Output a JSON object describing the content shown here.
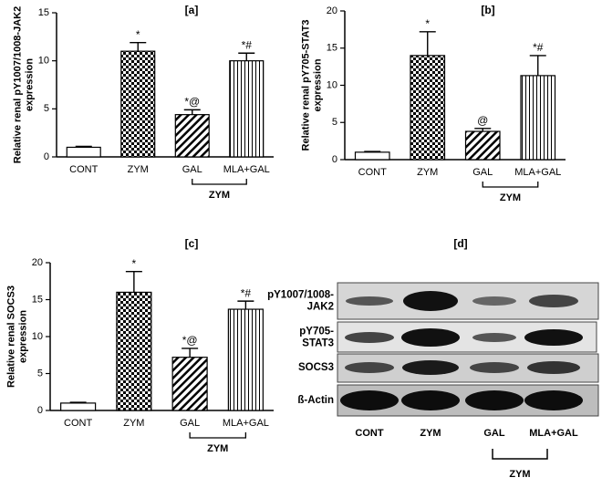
{
  "chart_data": [
    {
      "type": "bar",
      "title": "[a]",
      "ylabel": [
        "Relative renal pY1007/1008-JAK2",
        "expression"
      ],
      "categories": [
        "CONT",
        "ZYM",
        "GAL",
        "MLA+GAL"
      ],
      "values": [
        1,
        11,
        4.4,
        10
      ],
      "errors": [
        0.1,
        0.9,
        0.5,
        0.8
      ],
      "annotations": [
        null,
        "*",
        "*@",
        "*#"
      ],
      "patterns": [
        "none",
        "checker",
        "diagonal",
        "vertical"
      ],
      "group": {
        "label": "ZYM",
        "categories": [
          "GAL",
          "MLA+GAL"
        ]
      },
      "ylim": [
        0,
        15
      ],
      "yticks": [
        0,
        5,
        10,
        15
      ]
    },
    {
      "type": "bar",
      "title": "[b]",
      "ylabel": [
        "Relative renal pY705-STAT3",
        "expression"
      ],
      "categories": [
        "CONT",
        "ZYM",
        "GAL",
        "MLA+GAL"
      ],
      "values": [
        1,
        14,
        3.8,
        11.3
      ],
      "errors": [
        0.1,
        3.2,
        0.4,
        2.7
      ],
      "annotations": [
        null,
        "*",
        "@",
        "*#"
      ],
      "patterns": [
        "none",
        "checker",
        "diagonal",
        "vertical"
      ],
      "group": {
        "label": "ZYM",
        "categories": [
          "GAL",
          "MLA+GAL"
        ]
      },
      "ylim": [
        0,
        20
      ],
      "yticks": [
        0,
        5,
        10,
        15,
        20
      ]
    },
    {
      "type": "bar",
      "title": "[c]",
      "ylabel": [
        "Relative renal SOCS3",
        "expression"
      ],
      "categories": [
        "CONT",
        "ZYM",
        "GAL",
        "MLA+GAL"
      ],
      "values": [
        1,
        16,
        7.2,
        13.7
      ],
      "errors": [
        0.1,
        2.8,
        1.2,
        1.1
      ],
      "annotations": [
        null,
        "*",
        "*@",
        "*#"
      ],
      "patterns": [
        "none",
        "checker",
        "diagonal",
        "vertical"
      ],
      "group": {
        "label": "ZYM",
        "categories": [
          "GAL",
          "MLA+GAL"
        ]
      },
      "ylim": [
        0,
        20
      ],
      "yticks": [
        0,
        5,
        10,
        15,
        20
      ]
    }
  ],
  "blot": {
    "title": "[d]",
    "rows": [
      [
        "pY1007/1008-",
        "JAK2"
      ],
      [
        "pY705-",
        "STAT3"
      ],
      [
        "SOCS3"
      ],
      [
        "ß-Actin"
      ]
    ],
    "columns": [
      "CONT",
      "ZYM",
      "GAL",
      "MLA+GAL"
    ],
    "group": "ZYM"
  }
}
